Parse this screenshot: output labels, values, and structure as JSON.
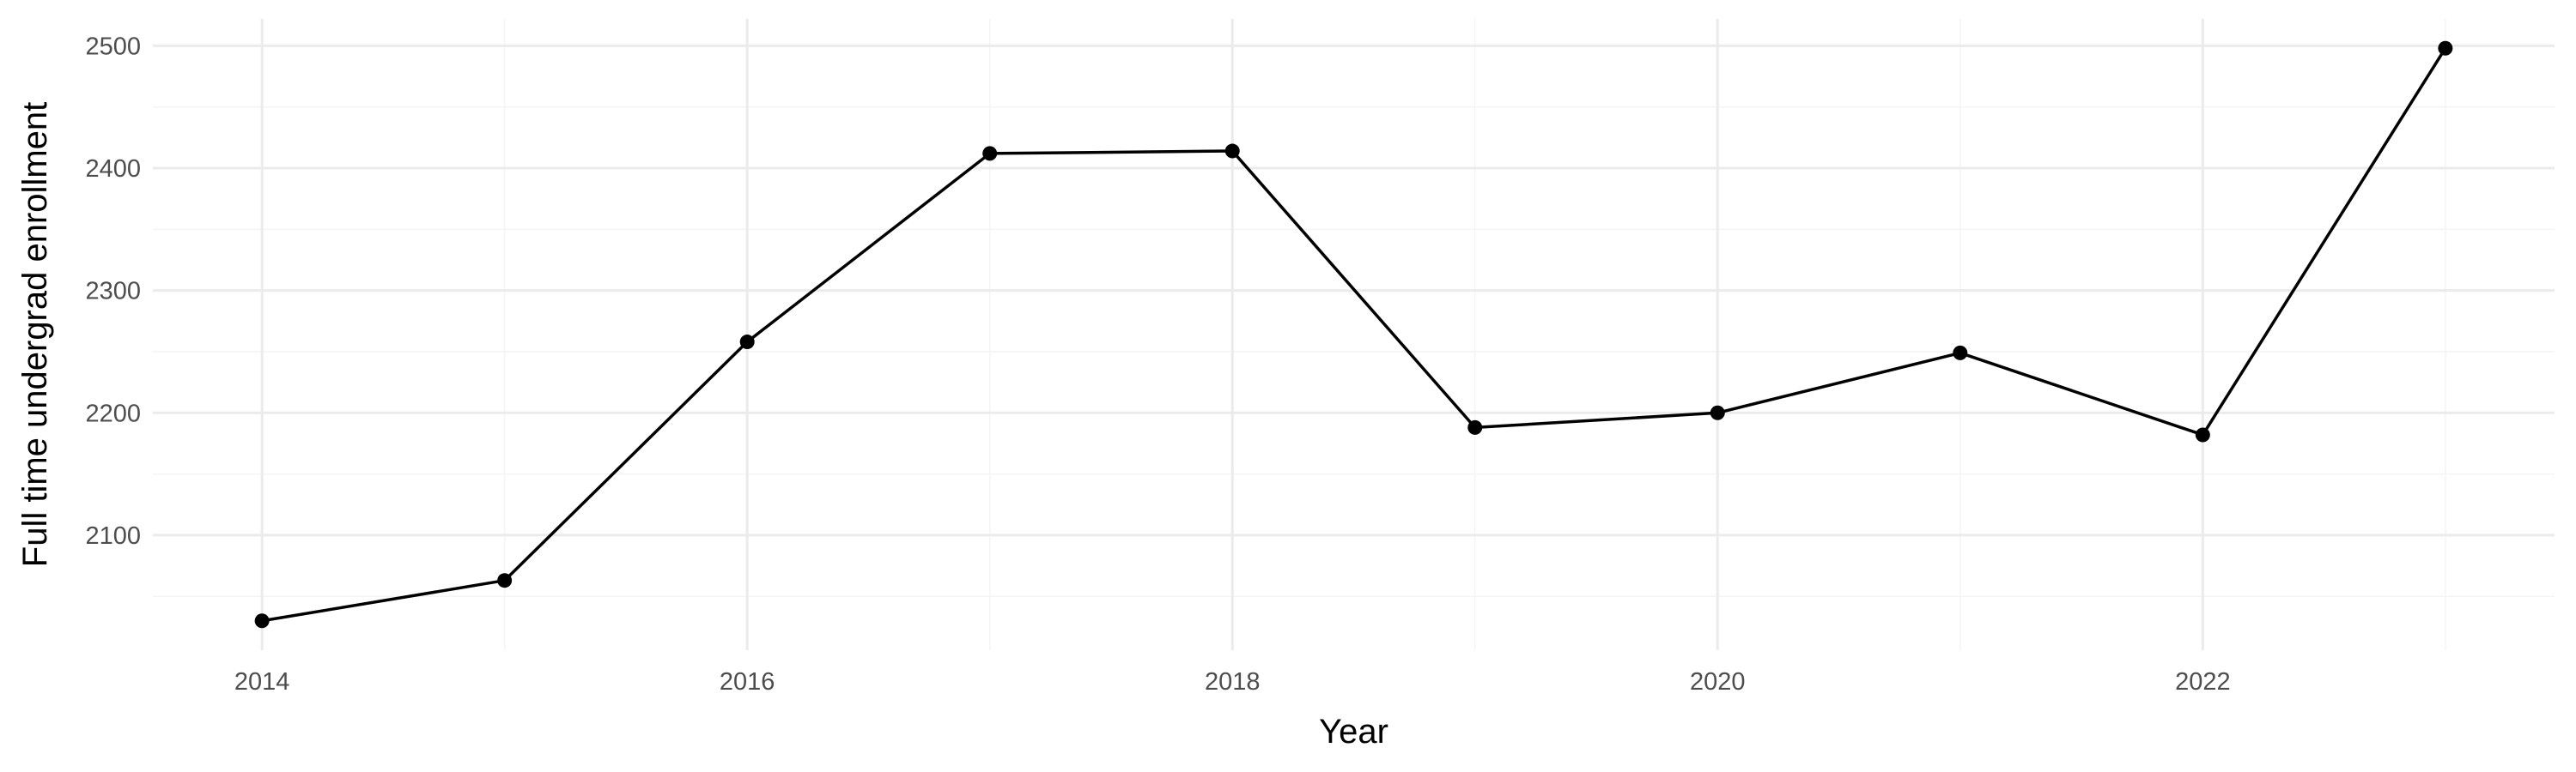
{
  "chart_data": {
    "type": "line",
    "title": "",
    "xlabel": "Year",
    "ylabel": "Full time undergrad enrollment",
    "x": [
      2014,
      2015,
      2016,
      2017,
      2018,
      2019,
      2020,
      2021,
      2022,
      2023
    ],
    "series": [
      {
        "values": [
          2030,
          2063,
          2258,
          2412,
          2414,
          2188,
          2200,
          2249,
          2182,
          2498
        ],
        "color": "#000000",
        "markers": true
      }
    ],
    "xticks": [
      2014,
      2016,
      2018,
      2020,
      2022
    ],
    "yticks": [
      2100,
      2200,
      2300,
      2400,
      2500
    ],
    "xlim": [
      2013.55,
      2023.45
    ],
    "ylim": [
      2006,
      2522
    ],
    "grid": true,
    "legend": "none"
  }
}
